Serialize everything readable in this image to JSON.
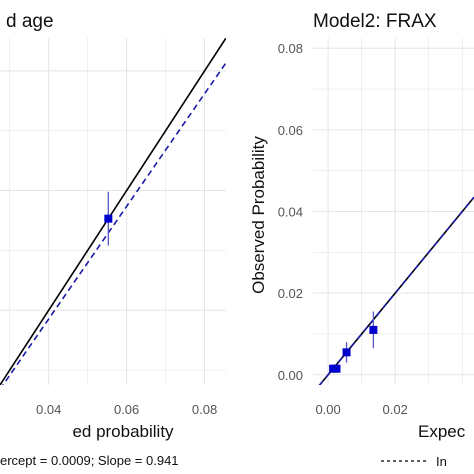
{
  "chart_data": [
    {
      "type": "scatter",
      "title": "d age",
      "xlabel": "ed probability",
      "ylabel": "",
      "xlim": [
        0.0275,
        0.0855
      ],
      "ylim": [
        0.0275,
        0.0855
      ],
      "x_ticks": [
        "0.04",
        "0.06",
        "0.08"
      ],
      "y_ticks": [],
      "grid": true,
      "points": [
        {
          "x": 0.0553,
          "y": 0.0553,
          "lower": 0.0508,
          "upper": 0.0598
        }
      ],
      "ideal_line": {
        "slope": 1,
        "intercept": 0
      },
      "fitted_line": {
        "intercept": 0.0009,
        "slope": 0.941
      },
      "annotation": "ercept = 0.0009; Slope = 0.941",
      "colors": {
        "points": "#0000cc",
        "ideal": "#000000",
        "fitted": "#1a1aa8",
        "grid": "#e5e5e5"
      }
    },
    {
      "type": "scatter",
      "title": "Model2: FRAX",
      "xlabel": "Expec",
      "ylabel": "Observed Probability",
      "xlim": [
        -0.0045,
        0.0435
      ],
      "ylim": [
        -0.0025,
        0.0825
      ],
      "x_ticks": [
        "0.00",
        "0.02"
      ],
      "y_ticks": [
        "0.00",
        "0.02",
        "0.04",
        "0.06",
        "0.08"
      ],
      "grid": true,
      "points": [
        {
          "x": 0.0015,
          "y": 0.0015
        },
        {
          "x": 0.0025,
          "y": 0.0015
        },
        {
          "x": 0.0055,
          "y": 0.0055,
          "lower": 0.003,
          "upper": 0.008
        },
        {
          "x": 0.0135,
          "y": 0.011,
          "lower": 0.0065,
          "upper": 0.0155
        }
      ],
      "ideal_line": {
        "slope": 1,
        "intercept": 0
      },
      "legend": {
        "position": "bottom",
        "label": "In"
      },
      "colors": {
        "points": "#0000cc",
        "ideal": "#000000",
        "fitted": "#1a1aa8",
        "grid": "#e5e5e5"
      }
    }
  ]
}
